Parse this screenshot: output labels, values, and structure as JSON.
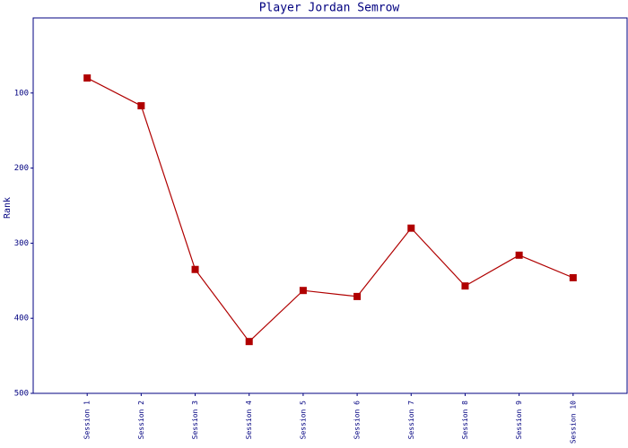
{
  "chart_data": {
    "type": "line",
    "title": "Player Jordan Semrow",
    "y_label": "Rank",
    "categories": [
      "Session 1",
      "Session 2",
      "Session 3",
      "Session 4",
      "Session 5",
      "Session 6",
      "Session 7",
      "Session 8",
      "Session 9",
      "Session 10"
    ],
    "series": [
      {
        "name": "Rank",
        "color": "#b00000",
        "values": [
          80,
          117,
          335,
          431,
          363,
          371,
          280,
          357,
          316,
          346
        ]
      }
    ],
    "ylim": [
      500,
      0
    ],
    "yticks": [
      100,
      200,
      300,
      400,
      500
    ],
    "grid": false
  }
}
